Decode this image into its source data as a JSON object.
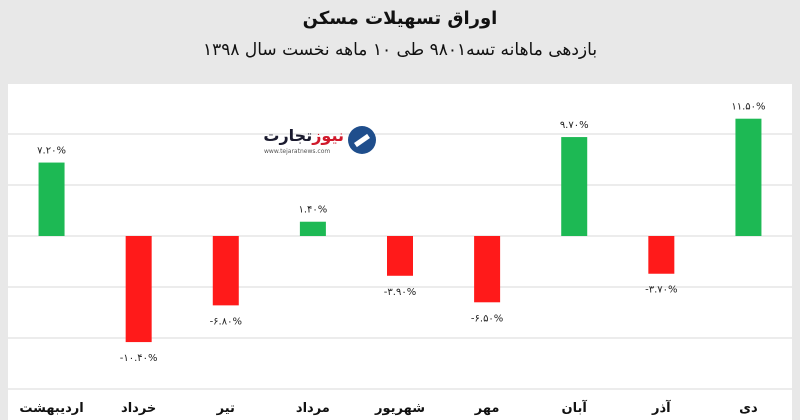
{
  "title": "اوراق تسهیلات مسکن",
  "subtitle": "بازدهی ماهانه تسه۹۸۰۱ طی ۱۰ ماهه نخست سال ۱۳۹۸",
  "logo": {
    "name_accent": "نیوز",
    "name_main": "تجارت",
    "url": "www.tejaratnews.com"
  },
  "chart_data": {
    "type": "bar",
    "title": "اوراق تسهیلات مسکن",
    "subtitle": "بازدهی ماهانه تسه۹۸۰۱ طی ۱۰ ماهه نخست سال ۱۳۹۸",
    "categories": [
      "اردیبهشت",
      "خرداد",
      "تیر",
      "مرداد",
      "شهریور",
      "مهر",
      "آبان",
      "آذر",
      "دی"
    ],
    "values": [
      7.2,
      -10.4,
      -6.8,
      1.4,
      -3.9,
      -6.5,
      9.7,
      -3.7,
      11.5
    ],
    "value_labels": [
      "۷.۲۰%",
      "-۱۰.۴۰%",
      "-۶.۸۰%",
      "۱.۴۰%",
      "-۳.۹۰%",
      "-۶.۵۰%",
      "۹.۷۰%",
      "-۳.۷۰%",
      "۱۱.۵۰%"
    ],
    "ylim": [
      -15,
      15
    ],
    "grid": true,
    "colors": {
      "positive": "#1db954",
      "negative": "#ff1a1a",
      "grid": "#d9d9d9"
    }
  }
}
